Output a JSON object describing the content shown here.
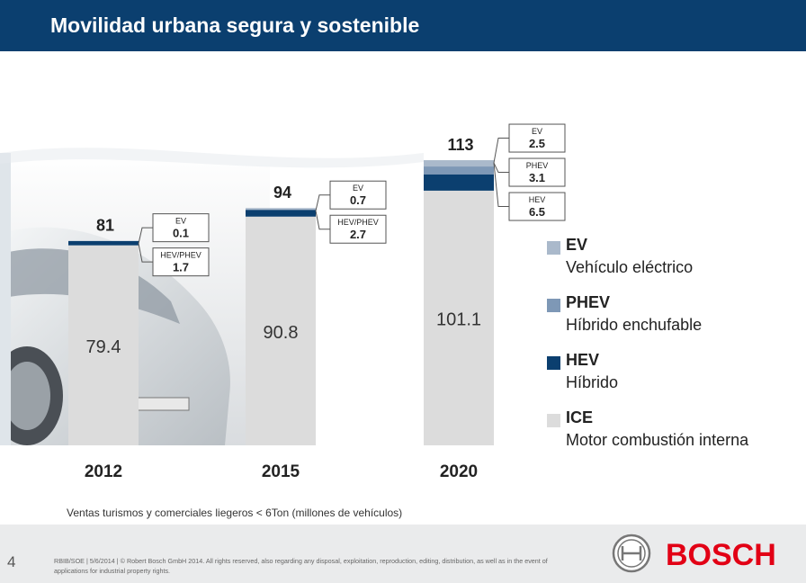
{
  "header": {
    "title": "Movilidad urbana segura y sostenible"
  },
  "chart_data": {
    "type": "bar",
    "stacked": true,
    "categories": [
      "2012",
      "2015",
      "2020"
    ],
    "totals": [
      "81",
      "94",
      "113"
    ],
    "ylim": [
      0,
      120
    ],
    "series": [
      {
        "name": "ICE",
        "values": [
          79.4,
          90.8,
          101.1
        ],
        "color": "#dcdcdc",
        "labels": [
          "79.4",
          "90.8",
          "101.1"
        ]
      },
      {
        "name": "HEV",
        "values": [
          1.7,
          2.7,
          6.5
        ],
        "color": "#0b3f6f"
      },
      {
        "name": "PHEV",
        "values": [
          0,
          0,
          3.1
        ],
        "color": "#7e98b6"
      },
      {
        "name": "EV",
        "values": [
          0.1,
          0.7,
          2.5
        ],
        "color": "#aab9cb"
      }
    ],
    "callouts": [
      [
        {
          "label": "EV",
          "value": "0.1"
        },
        {
          "label": "HEV/PHEV",
          "value": "1.7"
        }
      ],
      [
        {
          "label": "EV",
          "value": "0.7"
        },
        {
          "label": "HEV/PHEV",
          "value": "2.7"
        }
      ],
      [
        {
          "label": "EV",
          "value": "2.5"
        },
        {
          "label": "PHEV",
          "value": "3.1"
        },
        {
          "label": "HEV",
          "value": "6.5"
        }
      ]
    ],
    "xlabel": "Ventas turismos y comerciales liegeros < 6Ton (millones de vehículos)"
  },
  "legend": [
    {
      "code": "EV",
      "desc": "Vehículo eléctrico",
      "color": "#aab9cb"
    },
    {
      "code": "PHEV",
      "desc": "Híbrido enchufable",
      "color": "#7e98b6"
    },
    {
      "code": "HEV",
      "desc": "Híbrido",
      "color": "#0b3f6f"
    },
    {
      "code": "ICE",
      "desc": "Motor combustión interna",
      "color": "#dcdcdc"
    }
  ],
  "footer": {
    "page_number": "4",
    "text": "RBIB/SOE | 5/6/2014 | © Robert Bosch GmbH 2014. All rights reserved, also regarding any disposal, exploitation, reproduction, editing, distribution, as well as in the event of applications for industrial property rights.",
    "brand": "BOSCH",
    "brand_color": "#e20015"
  }
}
